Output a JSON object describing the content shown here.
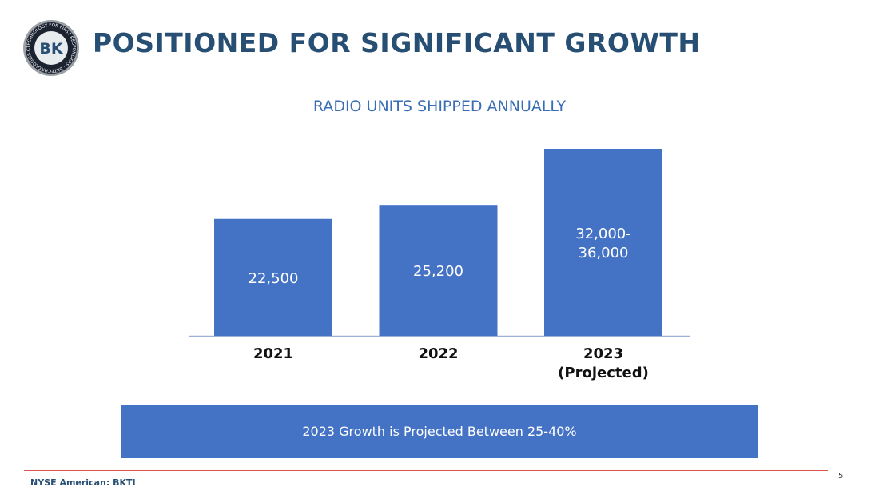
{
  "header": {
    "title": "POSITIONED FOR SIGNIFICANT GROWTH",
    "logo_text": "BK",
    "logo_ring_text": "TECHNOLOGY FOR FIRST RESPONDERS · BKTECHNOLOGIES.COM ·"
  },
  "colors": {
    "bar": "#4472c4",
    "title": "#274e73",
    "chart_title": "#3a6db5",
    "rule": "#d9534f"
  },
  "chart_data": {
    "type": "bar",
    "title": "RADIO UNITS SHIPPED ANNUALLY",
    "xlabel": "",
    "ylabel": "",
    "ylim": [
      0,
      36000
    ],
    "grid": false,
    "categories": [
      [
        "2021"
      ],
      [
        "2022"
      ],
      [
        "2023",
        "(Projected)"
      ]
    ],
    "values": [
      22500,
      25200,
      36000
    ],
    "data_labels": [
      [
        "22,500"
      ],
      [
        "25,200"
      ],
      [
        "32,000-",
        "36,000"
      ]
    ]
  },
  "banner": {
    "text": "2023 Growth is Projected Between 25-40%"
  },
  "footer": {
    "ticker": "NYSE American: BKTI",
    "page_number": "5"
  }
}
